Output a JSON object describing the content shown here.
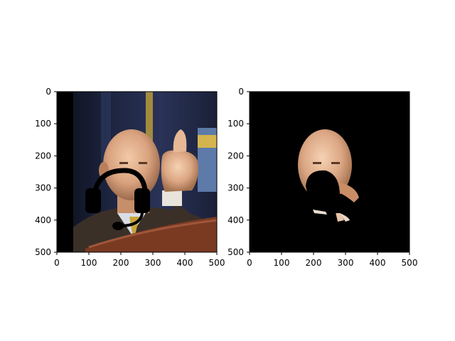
{
  "chart_data": [
    {
      "type": "image",
      "title": "",
      "xlabel": "",
      "ylabel": "",
      "xlim": [
        0,
        500
      ],
      "ylim": [
        500,
        0
      ],
      "xticks": [
        0,
        100,
        200,
        300,
        400,
        500
      ],
      "yticks": [
        0,
        100,
        200,
        300,
        400,
        500
      ],
      "content": "photo",
      "overlay": {
        "icon": "headset-icon",
        "color": "#000000",
        "cx": 185,
        "cy": 285,
        "r": 105
      }
    },
    {
      "type": "image",
      "title": "",
      "xlabel": "",
      "ylabel": "",
      "xlim": [
        0,
        500
      ],
      "ylim": [
        500,
        0
      ],
      "xticks": [
        0,
        100,
        200,
        300,
        400,
        500
      ],
      "yticks": [
        0,
        100,
        200,
        300,
        400,
        500
      ],
      "content": "masked-photo",
      "background": "#000000"
    }
  ]
}
